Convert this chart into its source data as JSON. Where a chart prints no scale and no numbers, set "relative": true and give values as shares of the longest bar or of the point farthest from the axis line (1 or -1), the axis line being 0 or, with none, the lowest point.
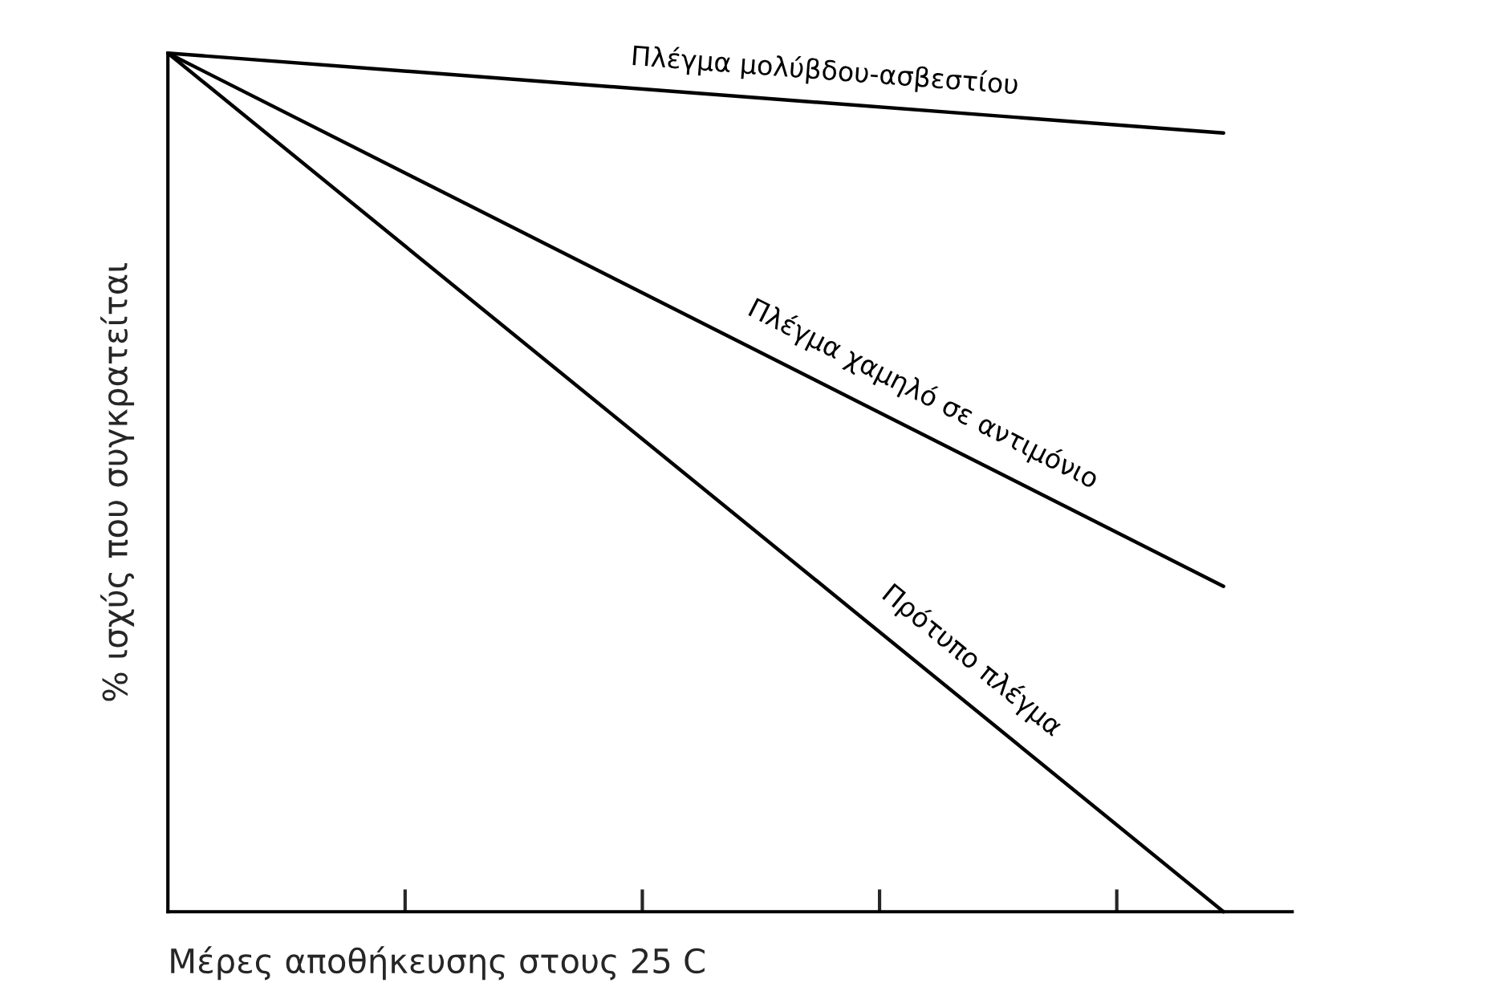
{
  "chart_data": {
    "type": "line",
    "relative": true,
    "xlabel": "Μέρες αποθήκευσης στους 25 C",
    "ylabel": "% ισχύς που συγκρατείται",
    "categories": [
      null,
      null
    ],
    "series": [
      {
        "name": "Πλέγμα μολύβδου-ασβεστίου",
        "color": "#000000",
        "values": [
          1,
          0.907
        ]
      },
      {
        "name": "Πλέγμα χαμηλό σε αντιμόνιο",
        "color": "#000000",
        "values": [
          1,
          0.379
        ]
      },
      {
        "name": "Πρότυπο πλέγμα",
        "color": "#000000",
        "values": [
          1,
          0
        ]
      }
    ],
    "grid": false,
    "legend": false,
    "marker": "none",
    "line_style": "solid"
  }
}
